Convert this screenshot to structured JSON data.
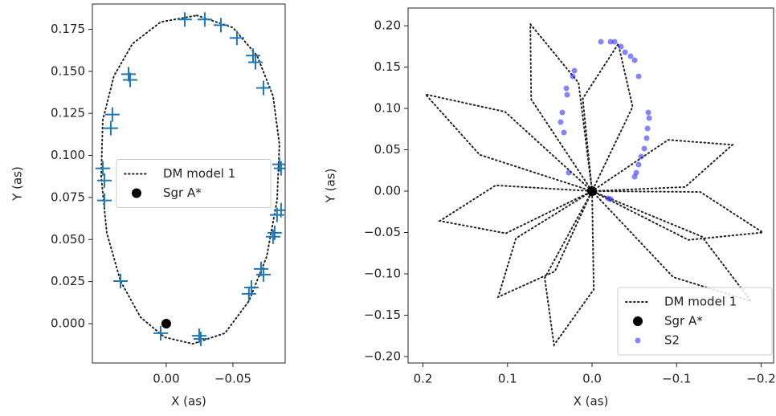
{
  "chart_data": [
    {
      "type": "scatter",
      "xlabel": "X (as)",
      "ylabel": "Y (as)",
      "xlim": [
        0.0554,
        -0.0892
      ],
      "ylim": [
        -0.0234,
        0.19
      ],
      "xticks": [
        {
          "value": 0,
          "label": "0.00"
        },
        {
          "value": -0.05,
          "label": "−0.05"
        }
      ],
      "yticks": [
        {
          "value": 0,
          "label": "0.000"
        },
        {
          "value": 0.025,
          "label": "0.025"
        },
        {
          "value": 0.05,
          "label": "0.050"
        },
        {
          "value": 0.075,
          "label": "0.075"
        },
        {
          "value": 0.1,
          "label": "0.100"
        },
        {
          "value": 0.125,
          "label": "0.125"
        },
        {
          "value": 0.15,
          "label": "0.150"
        },
        {
          "value": 0.175,
          "label": "0.175"
        }
      ],
      "legend": "center left",
      "series": [
        {
          "name": "DM model 1",
          "color": "#222222",
          "style": "dotted",
          "x": [
            -0.0229,
            -0.05,
            -0.0681,
            -0.0801,
            -0.0849,
            -0.0831,
            -0.0753,
            -0.062,
            -0.044,
            -0.0199,
            0.0012,
            0.0193,
            0.0343,
            0.0446,
            0.0488,
            0.0476,
            0.0392,
            0.0253,
            0.0042,
            -0.0229
          ],
          "y": [
            0.1832,
            0.176,
            0.1593,
            0.1353,
            0.1066,
            0.0732,
            0.0397,
            0.0134,
            -0.0057,
            -0.012,
            -0.0081,
            0.0038,
            0.0253,
            0.054,
            0.0875,
            0.121,
            0.1473,
            0.1664,
            0.1793,
            0.1832
          ]
        },
        {
          "color": "#1f77b4",
          "style": "plus",
          "x": [
            -0.0139,
            -0.0289,
            -0.041,
            -0.053,
            -0.0651,
            -0.0669,
            -0.0729,
            0.0283,
            0.0271,
            0.0404,
            0.0416,
            0.0476,
            0.0464,
            0.0464,
            -0.0849,
            -0.0861,
            -0.0861,
            -0.0831,
            -0.0813,
            -0.0801,
            -0.0711,
            -0.0729,
            -0.0639,
            -0.062,
            0.0343,
            0.0042,
            -0.0247,
            -0.0259
          ],
          "y": [
            0.1808,
            0.1808,
            0.1774,
            0.1698,
            0.1593,
            0.1554,
            0.1401,
            0.1483,
            0.1449,
            0.1243,
            0.1162,
            0.0923,
            0.0851,
            0.0732,
            0.0947,
            0.0923,
            0.0674,
            0.0646,
            0.054,
            0.0517,
            0.0325,
            0.0292,
            0.0215,
            0.0177,
            0.0253,
            -0.0057,
            -0.0072,
            -0.0091
          ]
        },
        {
          "name": "Sgr A*",
          "color": "#000000",
          "style": "dot",
          "x": [
            0
          ],
          "y": [
            0
          ]
        }
      ]
    },
    {
      "type": "scatter",
      "xlabel": "X (as)",
      "ylabel": "Y (as)",
      "xlim": [
        0.2176,
        -0.2147
      ],
      "ylim": [
        -0.2078,
        0.2214
      ],
      "xticks": [
        {
          "value": 0.2,
          "label": "0.2"
        },
        {
          "value": 0.1,
          "label": "0.1"
        },
        {
          "value": 0,
          "label": "0.0"
        },
        {
          "value": -0.1,
          "label": "−0.1"
        },
        {
          "value": -0.2,
          "label": "−0.2"
        }
      ],
      "yticks": [
        {
          "value": -0.2,
          "label": "−0.20"
        },
        {
          "value": -0.15,
          "label": "−0.15"
        },
        {
          "value": -0.1,
          "label": "−0.10"
        },
        {
          "value": -0.05,
          "label": "−0.05"
        },
        {
          "value": 0,
          "label": "0.00"
        },
        {
          "value": 0.05,
          "label": "0.05"
        },
        {
          "value": 0.1,
          "label": "0.10"
        },
        {
          "value": 0.15,
          "label": "0.15"
        },
        {
          "value": 0.2,
          "label": "0.20"
        }
      ],
      "legend": "lower right",
      "series": [
        {
          "name": "DM model 1",
          "color": "#222222",
          "style": "dotted",
          "x": [
            0,
            0.103,
            0.197,
            0.133,
            0,
            0.016,
            0.073,
            0.072,
            0,
            -0.048,
            -0.031,
            0.011,
            0,
            -0.11,
            -0.166,
            -0.09,
            0,
            -0.114,
            -0.202,
            -0.128,
            0,
            -0.096,
            -0.188,
            -0.13,
            0,
            0.056,
            0.045,
            -0.002,
            0,
            0.09,
            0.111,
            0.044,
            0,
            0.114,
            0.18,
            0.102,
            0
          ],
          "y": [
            0,
            0.096,
            0.117,
            0.044,
            0,
            0.131,
            0.202,
            0.111,
            0,
            0.102,
            0.178,
            0.112,
            0,
            0.005,
            0.056,
            0.062,
            0,
            -0.059,
            -0.05,
            -0.001,
            0,
            -0.104,
            -0.133,
            -0.055,
            0,
            -0.105,
            -0.186,
            -0.119,
            0,
            -0.057,
            -0.128,
            -0.097,
            0,
            0.007,
            -0.036,
            -0.051,
            0
          ]
        },
        {
          "name": "Sgr A*",
          "color": "#000000",
          "style": "dot",
          "x": [
            0
          ],
          "y": [
            0
          ]
        },
        {
          "name": "S2",
          "color": "#3333ee",
          "style": "smalldot",
          "x": [
            -0.0105,
            -0.0219,
            -0.0266,
            -0.0342,
            -0.039,
            -0.0456,
            -0.0504,
            -0.0551,
            -0.0665,
            -0.0675,
            -0.0656,
            -0.0646,
            -0.0618,
            -0.058,
            -0.0551,
            -0.0523,
            -0.0504,
            -0.0219,
            -0.019,
            0.0209,
            0.0228,
            0.0304,
            0.0295,
            0.0352,
            0.0371,
            0.0333,
            0.0276
          ],
          "y": [
            0.1806,
            0.1806,
            0.1806,
            0.1748,
            0.168,
            0.1631,
            0.1583,
            0.1388,
            0.0951,
            0.0883,
            0.0757,
            0.0641,
            0.0515,
            0.0417,
            0.032,
            0.0223,
            0.0175,
            -0.0097,
            -0.0087,
            0.1456,
            0.1388,
            0.1243,
            0.1165,
            0.0951,
            0.0835,
            0.0709,
            0.0223
          ]
        }
      ]
    }
  ]
}
